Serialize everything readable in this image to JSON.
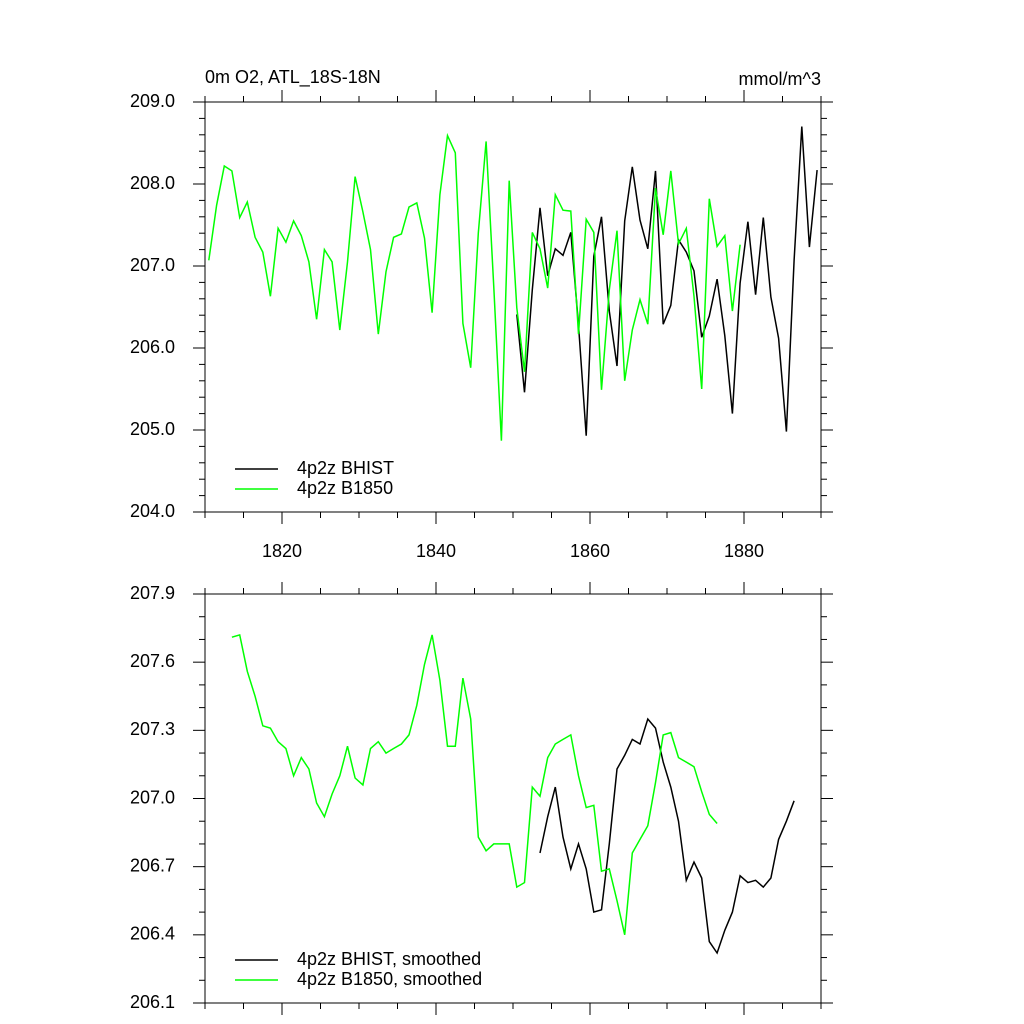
{
  "chart_data": [
    {
      "type": "line",
      "title": "0m O2, ATL_18S-18N",
      "units": "mmol/m^3",
      "xlim": [
        1810,
        1890
      ],
      "ylim": [
        204,
        209
      ],
      "xticks": [
        1820,
        1840,
        1860,
        1880
      ],
      "yticks": [
        {
          "value": 204,
          "label": "204.0"
        },
        {
          "value": 205,
          "label": "205.0"
        },
        {
          "value": 206,
          "label": "206.0"
        },
        {
          "value": 207,
          "label": "207.0"
        },
        {
          "value": 208,
          "label": "208.0"
        },
        {
          "value": 209,
          "label": "209.0"
        }
      ],
      "legend": "lower left",
      "series": [
        {
          "name": "4p2z BHIST",
          "color": "#000000",
          "x": [
            1850.5,
            1851.5,
            1852.5,
            1853.5,
            1854.5,
            1855.5,
            1856.5,
            1857.5,
            1858.5,
            1859.5,
            1860.5,
            1861.5,
            1862.5,
            1863.5,
            1864.5,
            1865.5,
            1866.5,
            1867.5,
            1868.5,
            1869.5,
            1870.5,
            1871.5,
            1872.5,
            1873.5,
            1874.5,
            1875.5,
            1876.5,
            1877.5,
            1878.5,
            1879.5,
            1880.5,
            1881.5,
            1882.5,
            1883.5,
            1884.5,
            1885.5,
            1886.5,
            1887.5,
            1888.5,
            1889.5
          ],
          "values": [
            206.41,
            205.46,
            206.71,
            207.71,
            206.88,
            207.21,
            207.13,
            207.41,
            206.28,
            204.93,
            207.12,
            207.6,
            206.45,
            205.78,
            207.55,
            208.21,
            207.56,
            207.21,
            208.16,
            206.29,
            206.52,
            207.32,
            207.17,
            206.94,
            206.13,
            206.39,
            206.84,
            206.15,
            205.2,
            206.79,
            207.54,
            206.65,
            207.59,
            206.62,
            206.12,
            204.98,
            207.07,
            208.7,
            207.23,
            208.17
          ]
        },
        {
          "name": "4p2z B1850",
          "color": "#00ff00",
          "x": [
            1810.5,
            1811.5,
            1812.5,
            1813.5,
            1814.5,
            1815.5,
            1816.5,
            1817.5,
            1818.5,
            1819.5,
            1820.5,
            1821.5,
            1822.5,
            1823.5,
            1824.5,
            1825.5,
            1826.5,
            1827.5,
            1828.5,
            1829.5,
            1830.5,
            1831.5,
            1832.5,
            1833.5,
            1834.5,
            1835.5,
            1836.5,
            1837.5,
            1838.5,
            1839.5,
            1840.5,
            1841.5,
            1842.5,
            1843.5,
            1844.5,
            1845.5,
            1846.5,
            1847.5,
            1848.5,
            1849.5,
            1850.5,
            1851.5,
            1852.5,
            1853.5,
            1854.5,
            1855.5,
            1856.5,
            1857.5,
            1858.5,
            1859.5,
            1860.5,
            1861.5,
            1862.5,
            1863.5,
            1864.5,
            1865.5,
            1866.5,
            1867.5,
            1868.5,
            1869.5,
            1870.5,
            1871.5,
            1872.5,
            1873.5,
            1874.5,
            1875.5,
            1876.5,
            1877.5,
            1878.5,
            1879.5
          ],
          "values": [
            207.07,
            207.74,
            208.22,
            208.16,
            207.59,
            207.78,
            207.35,
            207.17,
            206.63,
            207.46,
            207.29,
            207.55,
            207.37,
            207.05,
            206.35,
            207.2,
            207.05,
            206.22,
            207.05,
            208.09,
            207.66,
            207.2,
            206.17,
            206.93,
            207.35,
            207.39,
            207.72,
            207.77,
            207.34,
            206.43,
            207.87,
            208.59,
            208.38,
            206.3,
            205.76,
            207.4,
            208.52,
            206.74,
            204.87,
            208.04,
            206.49,
            205.71,
            207.41,
            207.21,
            206.73,
            207.87,
            207.68,
            207.67,
            206.17,
            207.57,
            207.41,
            205.49,
            206.71,
            207.43,
            205.6,
            206.22,
            206.59,
            206.29,
            207.95,
            207.38,
            208.16,
            207.27,
            207.46,
            206.63,
            205.5,
            207.82,
            207.24,
            207.37,
            206.45,
            207.26
          ]
        }
      ]
    },
    {
      "type": "line",
      "xlim": [
        1810,
        1890
      ],
      "ylim": [
        206.1,
        207.9
      ],
      "yticks": [
        206.1,
        206.4,
        206.7,
        {
          "value": 207,
          "label": "207.0"
        },
        207.3,
        207.6,
        207.9
      ],
      "legend": "lower left",
      "series": [
        {
          "name": "4p2z BHIST, smoothed",
          "color": "#000000",
          "x": [
            1853.5,
            1854.5,
            1855.5,
            1856.5,
            1857.5,
            1858.5,
            1859.5,
            1860.5,
            1861.5,
            1862.5,
            1863.5,
            1864.5,
            1865.5,
            1866.5,
            1867.5,
            1868.5,
            1869.5,
            1870.5,
            1871.5,
            1872.5,
            1873.5,
            1874.5,
            1875.5,
            1876.5,
            1877.5,
            1878.5,
            1879.5,
            1880.5,
            1881.5,
            1882.5,
            1883.5,
            1884.5,
            1885.5,
            1886.5
          ],
          "values": [
            206.76,
            206.92,
            207.05,
            206.83,
            206.69,
            206.8,
            206.69,
            206.5,
            206.51,
            206.8,
            207.13,
            207.19,
            207.26,
            207.24,
            207.35,
            207.31,
            207.16,
            207.05,
            206.9,
            206.64,
            206.72,
            206.65,
            206.37,
            206.32,
            206.42,
            206.5,
            206.66,
            206.63,
            206.64,
            206.61,
            206.65,
            206.82,
            206.9,
            206.99
          ]
        },
        {
          "name": "4p2z B1850, smoothed",
          "color": "#00ff00",
          "x": [
            1813.5,
            1814.5,
            1815.5,
            1816.5,
            1817.5,
            1818.5,
            1819.5,
            1820.5,
            1821.5,
            1822.5,
            1823.5,
            1824.5,
            1825.5,
            1826.5,
            1827.5,
            1828.5,
            1829.5,
            1830.5,
            1831.5,
            1832.5,
            1833.5,
            1834.5,
            1835.5,
            1836.5,
            1837.5,
            1838.5,
            1839.5,
            1840.5,
            1841.5,
            1842.5,
            1843.5,
            1844.5,
            1845.5,
            1846.5,
            1847.5,
            1848.5,
            1849.5,
            1850.5,
            1851.5,
            1852.5,
            1853.5,
            1854.5,
            1855.5,
            1856.5,
            1857.5,
            1858.5,
            1859.5,
            1860.5,
            1861.5,
            1862.5,
            1863.5,
            1864.5,
            1865.5,
            1866.5,
            1867.5,
            1868.5,
            1869.5,
            1870.5,
            1871.5,
            1872.5,
            1873.5,
            1874.5,
            1875.5,
            1876.5
          ],
          "values": [
            207.71,
            207.72,
            207.56,
            207.45,
            207.32,
            207.31,
            207.25,
            207.22,
            207.1,
            207.18,
            207.13,
            206.98,
            206.92,
            207.02,
            207.1,
            207.23,
            207.09,
            207.06,
            207.22,
            207.25,
            207.2,
            207.22,
            207.24,
            207.28,
            207.41,
            207.59,
            207.72,
            207.52,
            207.23,
            207.23,
            207.53,
            207.35,
            206.83,
            206.77,
            206.8,
            206.8,
            206.8,
            206.61,
            206.63,
            207.05,
            207.01,
            207.18,
            207.24,
            207.26,
            207.28,
            207.1,
            206.96,
            206.97,
            206.68,
            206.69,
            206.55,
            206.4,
            206.76,
            206.82,
            206.88,
            207.07,
            207.28,
            207.29,
            207.18,
            207.16,
            207.14,
            207.03,
            206.93,
            206.89
          ]
        }
      ]
    }
  ]
}
